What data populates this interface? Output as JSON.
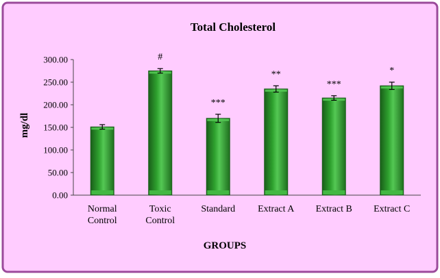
{
  "chart_data": {
    "type": "bar",
    "title": "Total Cholesterol",
    "xlabel": "GROUPS",
    "ylabel": "mg/dl",
    "categories": [
      "Normal Control",
      "Toxic Control",
      "Standard",
      "Extract A",
      "Extract B",
      "Extract C"
    ],
    "category_lines": [
      [
        "Normal",
        "Control"
      ],
      [
        "Toxic",
        "Control"
      ],
      [
        "Standard"
      ],
      [
        "Extract A"
      ],
      [
        "Extract B"
      ],
      [
        "Extract C"
      ]
    ],
    "values": [
      151,
      275,
      170,
      235,
      215,
      242
    ],
    "errors": [
      5,
      5,
      9,
      7,
      5,
      8
    ],
    "annotations": [
      "",
      "#",
      "***",
      "**",
      "***",
      "*"
    ],
    "ylim": [
      0,
      300
    ],
    "yticks": [
      0,
      50,
      100,
      150,
      200,
      250,
      300
    ],
    "ytick_labels": [
      "0.00",
      "50.00",
      "100.00",
      "150.00",
      "200.00",
      "250.00",
      "300.00"
    ],
    "grid": false,
    "legend": "none",
    "colors": {
      "background": "#ffccff",
      "border": "#9b4a9b",
      "bar_dark": "#1a5e1a",
      "bar_mid": "#2ea12e",
      "bar_light": "#54c854",
      "bar_base": "#43b843"
    }
  }
}
